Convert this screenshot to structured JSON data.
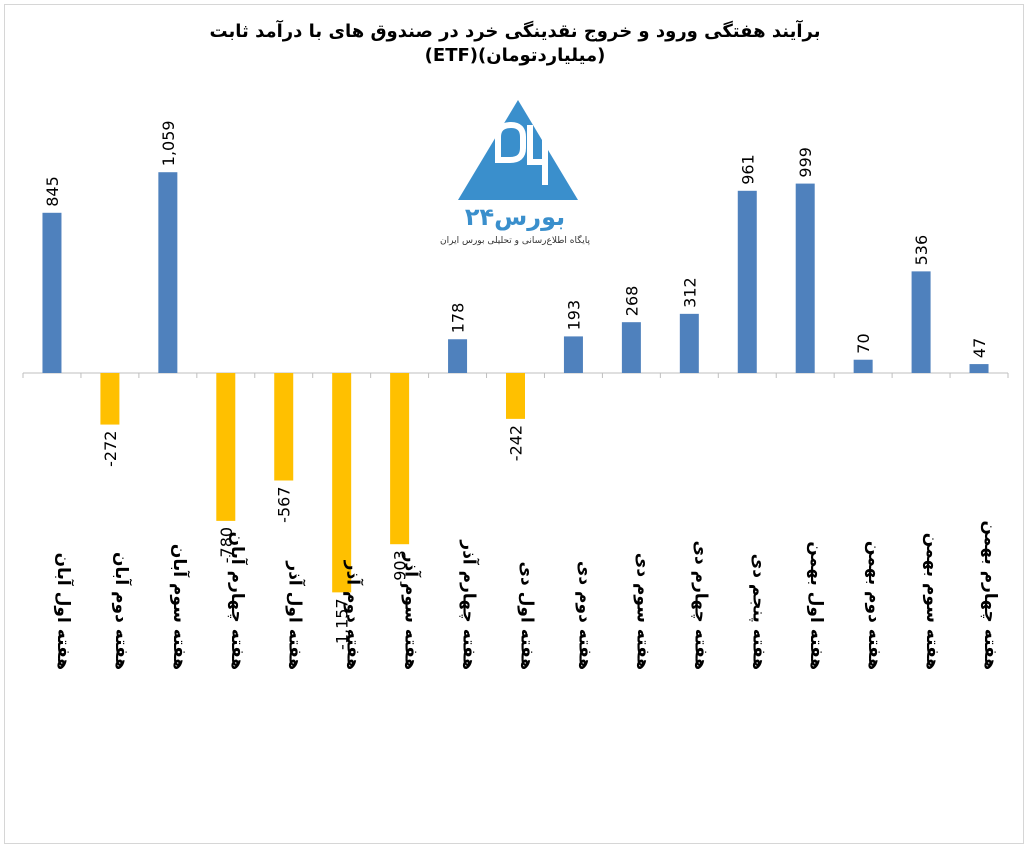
{
  "chart_data": {
    "type": "bar",
    "title": "برآیند هفتگی ورود و خروج نقدینگی خرد در صندوق های با درآمد ثابت",
    "subtitle": "(ETF)(میلیاردتومان)",
    "categories": [
      "هفته اول آبان",
      "هفته دوم آبان",
      "هفته سوم آبان",
      "هفته چهارم آبان",
      "هفته اول آذر",
      "هفته دوم آذر",
      "هفته سوم آذر",
      "هفته چهارم آذر",
      "هفته اول دی",
      "هفته دوم دی",
      "هفته سوم دی",
      "هفته چهارم دی",
      "هفته پنجم دی",
      "هفته اول بهمن",
      "هفته دوم بهمن",
      "هفته سوم بهمن",
      "هفته چهارم بهمن"
    ],
    "values": [
      845,
      -272,
      1059,
      -780,
      -567,
      -1157,
      -903,
      178,
      -242,
      193,
      268,
      312,
      961,
      999,
      70,
      536,
      47
    ],
    "value_labels": [
      "845",
      "-272",
      "1,059",
      "-780",
      "-567",
      "-1,157",
      "-903",
      "178",
      "-242",
      "193",
      "268",
      "312",
      "961",
      "999",
      "70",
      "536",
      "47"
    ],
    "colors": {
      "positive": "#4f81bd",
      "negative": "#ffc000",
      "axis": "#bfbfbf"
    },
    "grid": false,
    "legend": "none"
  },
  "logo": {
    "name": "بورس۲۴",
    "tagline": "پایگاه اطلاع‌رسانی و تحلیلی بورس ایران",
    "color": "#3a8fcc"
  }
}
